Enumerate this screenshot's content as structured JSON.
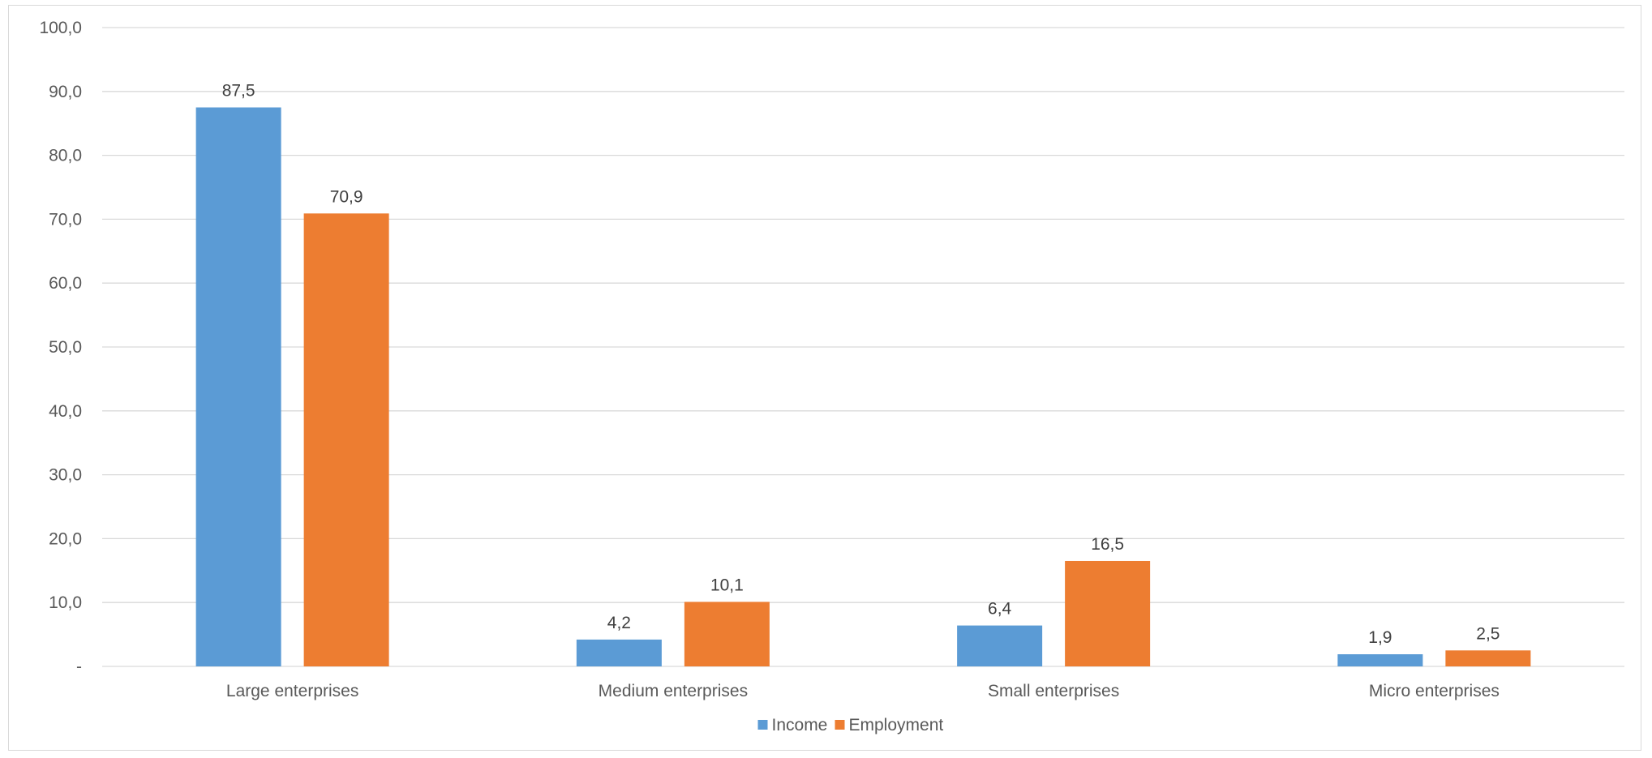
{
  "chart_data": {
    "type": "bar",
    "categories": [
      "Large enterprises",
      "Medium enterprises",
      "Small enterprises",
      "Micro enterprises"
    ],
    "series": [
      {
        "name": "Income",
        "values": [
          87.5,
          4.2,
          6.4,
          1.9
        ],
        "labels": [
          "87,5",
          "4,2",
          "6,4",
          "1,9"
        ],
        "color": "#5b9bd5"
      },
      {
        "name": "Employment",
        "values": [
          70.9,
          10.1,
          16.5,
          2.5
        ],
        "labels": [
          "70,9",
          "10,1",
          "16,5",
          "2,5"
        ],
        "color": "#ed7d31"
      }
    ],
    "ylim": [
      0,
      100
    ],
    "yticks": [
      0,
      10,
      20,
      30,
      40,
      50,
      60,
      70,
      80,
      90,
      100
    ],
    "ytick_labels": [
      "-",
      "10,0",
      "20,0",
      "30,0",
      "40,0",
      "50,0",
      "60,0",
      "70,0",
      "80,0",
      "90,0",
      "100,0"
    ],
    "title": "",
    "xlabel": "",
    "ylabel": "",
    "grid": true,
    "gridline_color": "#d9d9d9",
    "legend_position": "bottom"
  }
}
